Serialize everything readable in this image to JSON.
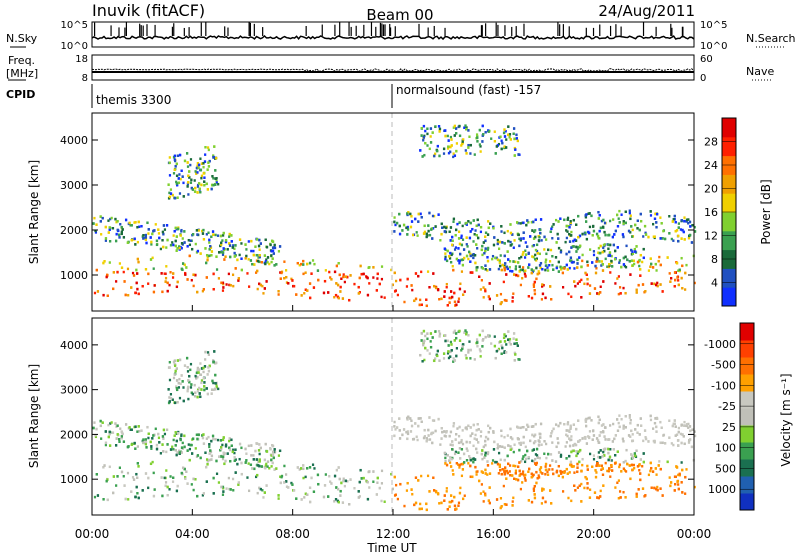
{
  "header": {
    "station": "Inuvik (fitACF)",
    "beam": "Beam 00",
    "date": "24/Aug/2011"
  },
  "top_panels": {
    "nsky_label": "N.Sky",
    "nsky_ticks": [
      "10^5",
      "10^0"
    ],
    "nsearch_label": "N.Search",
    "nsearch_ticks": [
      "10^5",
      "10^0"
    ],
    "freq_label": "Freq.",
    "freq_unit": "[MHz]",
    "freq_ticks": [
      "18",
      "8"
    ],
    "nave_label": "Nave",
    "nave_ticks": [
      "60",
      "0"
    ],
    "cpid_label": "CPID",
    "cpid_segments": [
      {
        "label": "themis 3300",
        "start_hour": 0
      },
      {
        "label": "normalsound (fast) -157",
        "start_hour": 12
      }
    ]
  },
  "chart_data": [
    {
      "type": "heatmap",
      "parameter": "power",
      "ylabel": "Slant Range [km]",
      "ylim": [
        200,
        4600
      ],
      "yticks": [
        "1000",
        "2000",
        "3000",
        "4000"
      ],
      "xlim": [
        0,
        24
      ],
      "colorbar_label": "Power [dB]",
      "colorbar_ticks": [
        "4",
        "8",
        "12",
        "16",
        "20",
        "24",
        "28"
      ],
      "colorbar_colors": [
        "#1030ff",
        "#2050c0",
        "#1a6a3a",
        "#3aa050",
        "#80d030",
        "#f0d000",
        "#f0a000",
        "#ff7000",
        "#ff2000",
        "#e00000"
      ]
    },
    {
      "type": "heatmap",
      "parameter": "velocity",
      "ylabel": "Slant Range [km]",
      "ylim": [
        200,
        4600
      ],
      "yticks": [
        "1000",
        "2000",
        "3000",
        "4000"
      ],
      "xlim": [
        0,
        24
      ],
      "xticks": [
        "00:00",
        "04:00",
        "08:00",
        "12:00",
        "16:00",
        "20:00",
        "00:00"
      ],
      "xlabel": "Time UT",
      "colorbar_label": "Velocity [m s⁻¹]",
      "colorbar_ticks": [
        "1000",
        "500",
        "100",
        "25",
        "-25",
        "-100",
        "-500",
        "-1000"
      ],
      "colorbar_colors": [
        "#1030c0",
        "#2060b0",
        "#1a7050",
        "#3aa050",
        "#80d030",
        "#c0c0b8",
        "#c8c8c0",
        "#ffa000",
        "#ff7000",
        "#ff4000",
        "#e00000"
      ]
    }
  ]
}
